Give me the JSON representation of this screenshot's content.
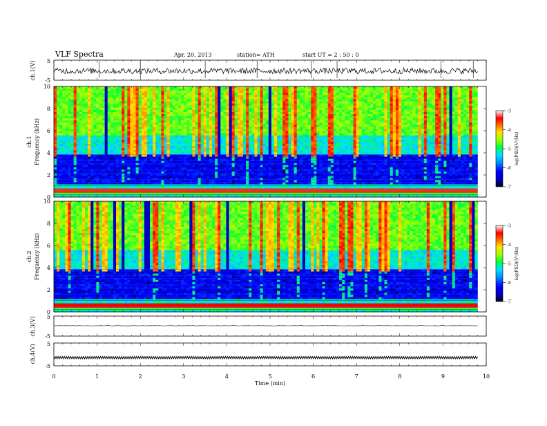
{
  "header": {
    "title": "VLF  Spectra",
    "date": "Apr. 20, 2013",
    "station": "station= ATH",
    "start": "start  UT  =   2  : 50 : 0"
  },
  "chart_data": [
    {
      "type": "line",
      "name": "ch1-waveform",
      "ylabel": "ch.1(V)",
      "xlim": [
        0,
        10
      ],
      "ylim": [
        -5,
        5
      ],
      "y_ticks": [
        "5",
        "-5"
      ],
      "data_end_min": 9.8,
      "description_values": {
        "baseline": 0,
        "amplitude": 1.5,
        "spikes_min": [
          1.05,
          2.0,
          3.5,
          4.7,
          5.95,
          6.55,
          8.95,
          9.7
        ]
      }
    },
    {
      "type": "heatmap",
      "name": "ch1-spectrogram",
      "ylabel": "ch.1\nFrequency  (kHz)",
      "xlim": [
        0,
        10
      ],
      "ylim": [
        0,
        10
      ],
      "y_ticks": [
        "10",
        "8",
        "6",
        "4",
        "2",
        "0"
      ],
      "colorbar": {
        "label": "log(PSD) (V^2/Hz)",
        "ticks": [
          "-3",
          "-4",
          "-5",
          "-6",
          "-7"
        ],
        "range": [
          -7,
          -3
        ]
      }
    },
    {
      "type": "heatmap",
      "name": "ch2-spectrogram",
      "ylabel": "ch.2\nFrequency  (kHz)",
      "xlim": [
        0,
        10
      ],
      "ylim": [
        0,
        10
      ],
      "y_ticks": [
        "10",
        "8",
        "6",
        "4",
        "2",
        "0"
      ],
      "colorbar": {
        "label": "log(PSD) (V^2/Hz)",
        "ticks": [
          "-3",
          "-4",
          "-5",
          "-6",
          "-7"
        ],
        "range": [
          -7,
          -3
        ]
      }
    },
    {
      "type": "line",
      "name": "ch3-waveform",
      "ylabel": "ch.3(V)",
      "xlim": [
        0,
        10
      ],
      "ylim": [
        -5,
        5
      ],
      "y_ticks": [
        "5",
        "-5"
      ],
      "values_note": {
        "level": 0.2
      }
    },
    {
      "type": "line",
      "name": "ch4-waveform",
      "ylabel": "ch.4(V)",
      "xlim": [
        0,
        10
      ],
      "ylim": [
        -5,
        5
      ],
      "y_ticks": [
        "5",
        "-5"
      ],
      "values_note": {
        "level": -1.4
      }
    }
  ],
  "x_axis": {
    "label": "Time  (min)",
    "ticks": [
      "0",
      "1",
      "2",
      "3",
      "4",
      "5",
      "6",
      "7",
      "8",
      "9",
      "10"
    ]
  }
}
